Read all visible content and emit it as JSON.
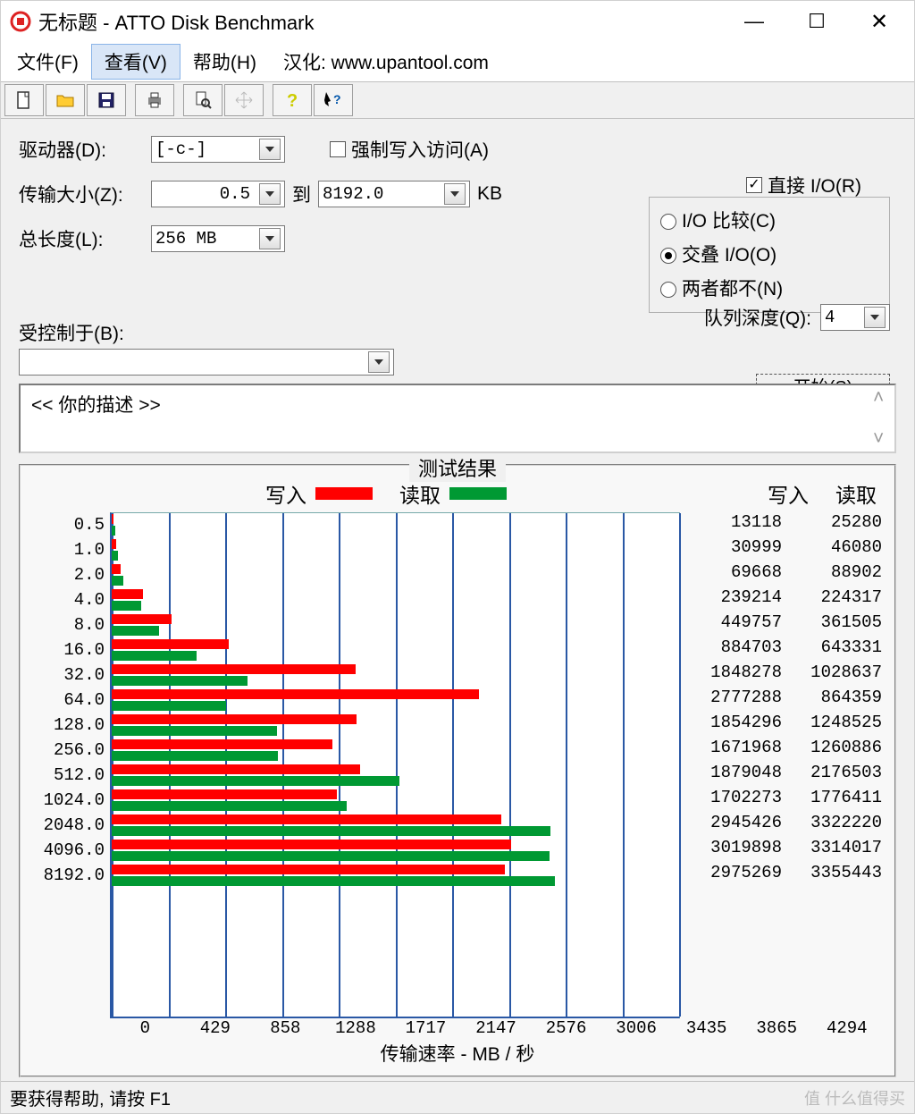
{
  "window": {
    "title": "无标题 - ATTO Disk Benchmark",
    "win_min": "—",
    "win_max": "☐",
    "win_close": "✕"
  },
  "menu": {
    "file": "文件(F)",
    "view": "查看(V)",
    "help": "帮助(H)",
    "credit": "汉化: www.upantool.com"
  },
  "config": {
    "drive_label": "驱动器(D):",
    "drive_value": "[-c-]",
    "transfer_label": "传输大小(Z):",
    "transfer_from": "0.5",
    "transfer_to_label": "到",
    "transfer_to": "8192.0",
    "transfer_unit": "KB",
    "length_label": "总长度(L):",
    "length_value": "256 MB",
    "force_write_label": "强制写入访问(A)",
    "force_write_checked": false,
    "direct_io_label": "直接 I/O(R)",
    "direct_io_checked": true,
    "io_compare": "I/O 比较(C)",
    "io_overlap": "交叠 I/O(O)",
    "io_neither": "两者都不(N)",
    "io_selected": "overlap",
    "queue_depth_label": "队列深度(Q):",
    "queue_depth_value": "4",
    "controlled_label": "受控制于(B):",
    "controlled_value": "",
    "start_label": "开始(S)",
    "desc_value": "<<  你的描述   >>"
  },
  "results": {
    "frame_title": "测试结果",
    "legend_write": "写入",
    "legend_read": "读取",
    "header_write": "写入",
    "header_read": "读取",
    "x_axis_label": "传输速率 - MB / 秒",
    "x_ticks": [
      "0",
      "429",
      "858",
      "1288",
      "1717",
      "2147",
      "2576",
      "3006",
      "3435",
      "3865",
      "4294"
    ],
    "x_max_kb": 4294000,
    "colors": {
      "write": "#ff0000",
      "read": "#009933",
      "grid": "#2a58a5",
      "bg": "#ffffff"
    },
    "rows": [
      {
        "size": "0.5",
        "write": 13118,
        "read": 25280
      },
      {
        "size": "1.0",
        "write": 30999,
        "read": 46080
      },
      {
        "size": "2.0",
        "write": 69668,
        "read": 88902
      },
      {
        "size": "4.0",
        "write": 239214,
        "read": 224317
      },
      {
        "size": "8.0",
        "write": 449757,
        "read": 361505
      },
      {
        "size": "16.0",
        "write": 884703,
        "read": 643331
      },
      {
        "size": "32.0",
        "write": 1848278,
        "read": 1028637
      },
      {
        "size": "64.0",
        "write": 2777288,
        "read": 864359
      },
      {
        "size": "128.0",
        "write": 1854296,
        "read": 1248525
      },
      {
        "size": "256.0",
        "write": 1671968,
        "read": 1260886
      },
      {
        "size": "512.0",
        "write": 1879048,
        "read": 2176503
      },
      {
        "size": "1024.0",
        "write": 1702273,
        "read": 1776411
      },
      {
        "size": "2048.0",
        "write": 2945426,
        "read": 3322220
      },
      {
        "size": "4096.0",
        "write": 3019898,
        "read": 3314017
      },
      {
        "size": "8192.0",
        "write": 2975269,
        "read": 3355443
      }
    ]
  },
  "status": {
    "help_text": "要获得帮助, 请按 F1",
    "watermark": "值  什么值得买"
  }
}
